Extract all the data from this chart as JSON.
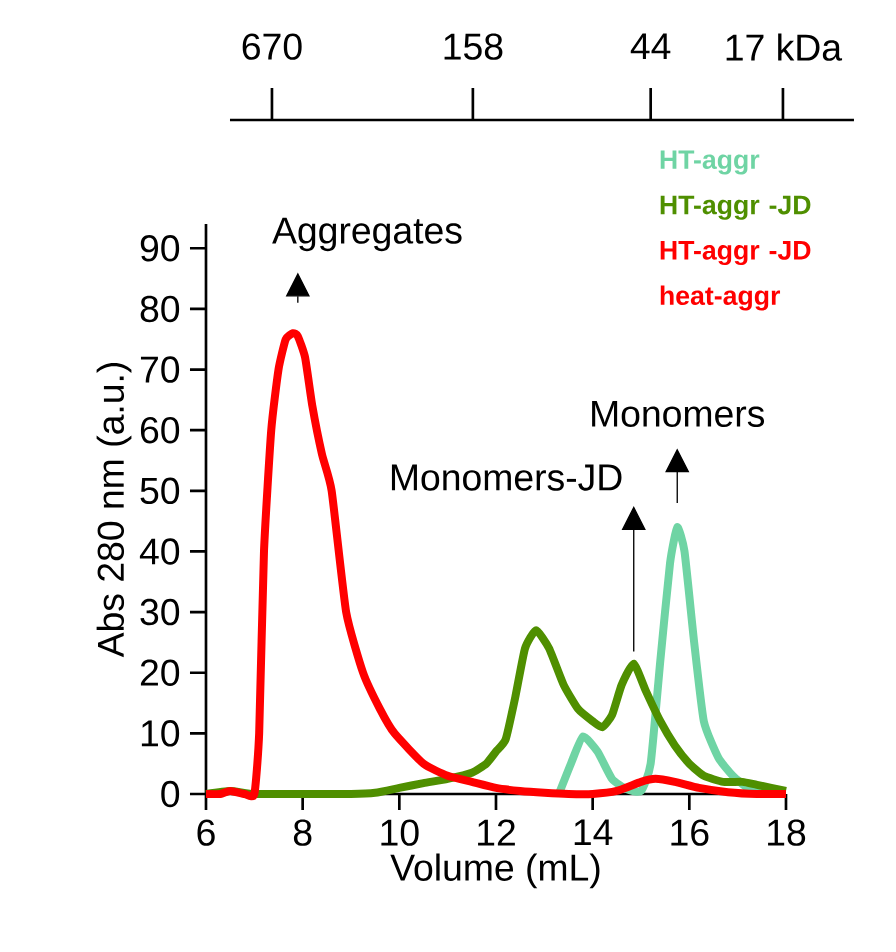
{
  "chart_data": {
    "type": "line",
    "xlabel": "Volume (mL)",
    "ylabel": "Abs 280 nm (a.u.)",
    "xlim": [
      6,
      18
    ],
    "xticks": [
      6,
      8,
      10,
      12,
      14,
      16,
      18
    ],
    "ylim": [
      0,
      94
    ],
    "yticks": [
      0,
      10,
      20,
      30,
      40,
      50,
      60,
      70,
      80,
      90
    ],
    "x2lim": [
      906,
      10.2
    ],
    "x2ticks": [
      670,
      158,
      44,
      {
        "value": 17,
        "label": "17 kDa"
      }
    ],
    "log": "x2",
    "grid": false,
    "legend": "top right",
    "marker": "none",
    "line_style": "solid",
    "series": [
      {
        "name": "HT-aggr",
        "color": "#6fd4a4",
        "x": [
          13.3,
          13.55,
          13.8,
          14.1,
          14.4,
          14.7,
          15.0,
          15.2,
          15.4,
          15.6,
          15.75,
          15.9,
          16.1,
          16.3,
          16.6,
          16.9,
          17.2,
          17.5
        ],
        "values": [
          0,
          5,
          9.5,
          7,
          2.5,
          0.8,
          0.5,
          5,
          22,
          38,
          44,
          40,
          25,
          12,
          6,
          3,
          1,
          0
        ]
      },
      {
        "name": "HT-aggr -JD",
        "color": "#4f8f00",
        "x": [
          6,
          6.5,
          7,
          8,
          9,
          9.5,
          10,
          10.5,
          11,
          11.5,
          11.8,
          12,
          12.2,
          12.4,
          12.6,
          12.83,
          13.1,
          13.4,
          13.7,
          14.0,
          14.2,
          14.4,
          14.6,
          14.85,
          15.1,
          15.4,
          15.7,
          16.0,
          16.3,
          16.7,
          17.1,
          17.4,
          18
        ],
        "values": [
          0,
          0.5,
          0,
          0,
          0,
          0.2,
          1,
          1.8,
          2.5,
          3.5,
          5,
          7,
          9,
          16,
          24,
          27,
          24,
          18,
          14,
          12,
          11,
          13,
          18,
          21.5,
          17,
          12,
          8,
          5,
          3,
          2,
          2,
          1.5,
          0.5
        ]
      },
      {
        "name": "HT-aggr -JD heat-aggr",
        "color": "#ff0000",
        "x": [
          6,
          6.3,
          6.5,
          6.8,
          7.0,
          7.1,
          7.2,
          7.35,
          7.5,
          7.65,
          7.8,
          7.9,
          8.05,
          8.2,
          8.4,
          8.6,
          8.9,
          9.25,
          9.6,
          9.9,
          10.5,
          11,
          11.5,
          12,
          12.5,
          13,
          13.5,
          14,
          14.5,
          15,
          15.3,
          15.7,
          16.2,
          16.8,
          17.4,
          18
        ],
        "values": [
          0,
          0,
          0.5,
          0,
          0,
          10,
          40,
          60,
          70,
          75,
          76,
          75.5,
          72,
          64,
          56,
          50,
          30,
          20,
          14,
          10,
          5,
          3,
          2,
          1,
          0.5,
          0.2,
          0,
          0,
          0.5,
          2,
          2.5,
          2,
          1,
          0.3,
          0,
          0
        ]
      }
    ],
    "annotations": [
      {
        "text": "Aggregates",
        "x": 7.9,
        "y": 76
      },
      {
        "text": "Monomers-JD",
        "x": 14.85,
        "y": 21.5
      },
      {
        "text": "Monomers",
        "x": 15.75,
        "y": 44
      }
    ]
  }
}
